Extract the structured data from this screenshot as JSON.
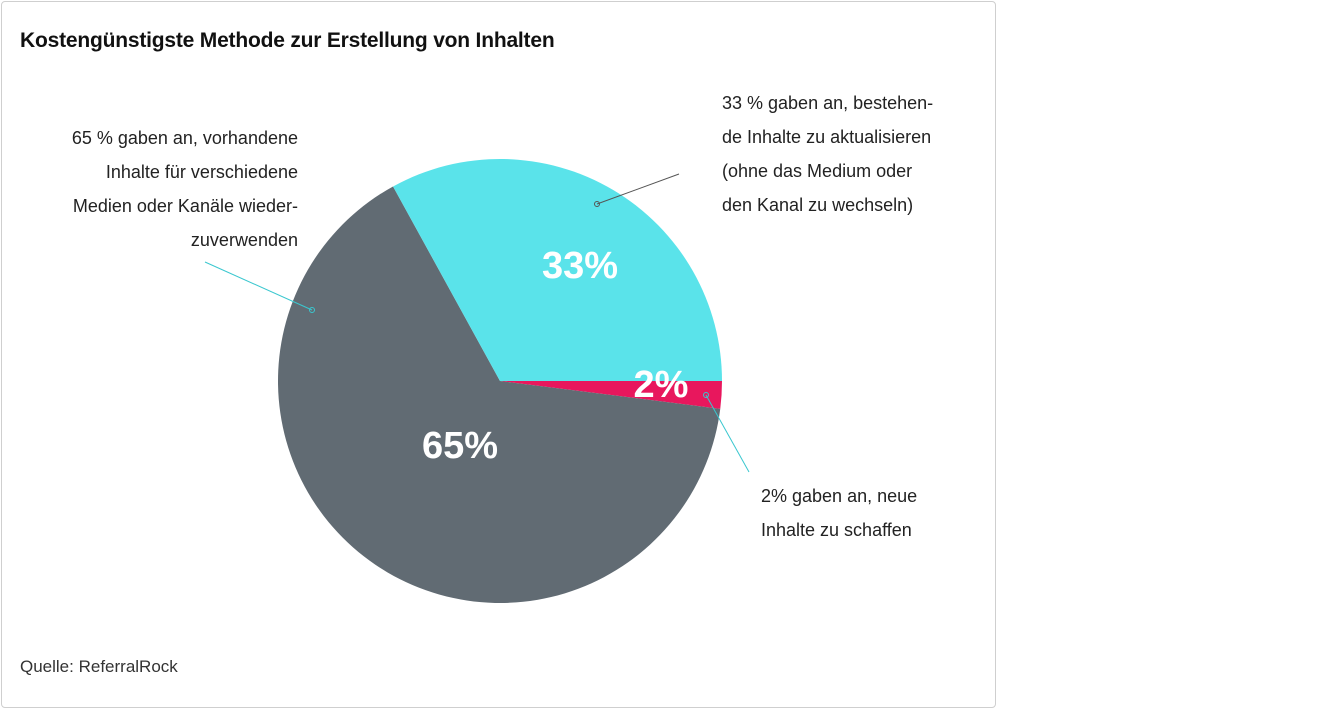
{
  "header": {
    "title": "Kostengünstigste Methode zur Erstellung von Inhalten"
  },
  "footer": {
    "source": "Quelle: ReferralRock"
  },
  "chart_data": {
    "type": "pie",
    "title": "Kostengünstigste Methode zur Erstellung von Inhalten",
    "slices": [
      {
        "value": 65,
        "label": "65%",
        "color": "#616b73",
        "annotation": [
          "65 % gaben an, vorhandene",
          "Inhalte für verschiedene",
          "Medien oder Kanäle wieder-",
          "zuverwenden"
        ]
      },
      {
        "value": 33,
        "label": "33%",
        "color": "#5ae3ea",
        "annotation": [
          "33 % gaben an, bestehen-",
          "de Inhalte zu aktualisieren",
          "(ohne das Medium oder",
          "den Kanal zu wechseln)"
        ]
      },
      {
        "value": 2,
        "label": "2%",
        "color": "#e8175d",
        "annotation": [
          "2% gaben an, neue",
          "Inhalte zu schaffen"
        ]
      }
    ]
  }
}
